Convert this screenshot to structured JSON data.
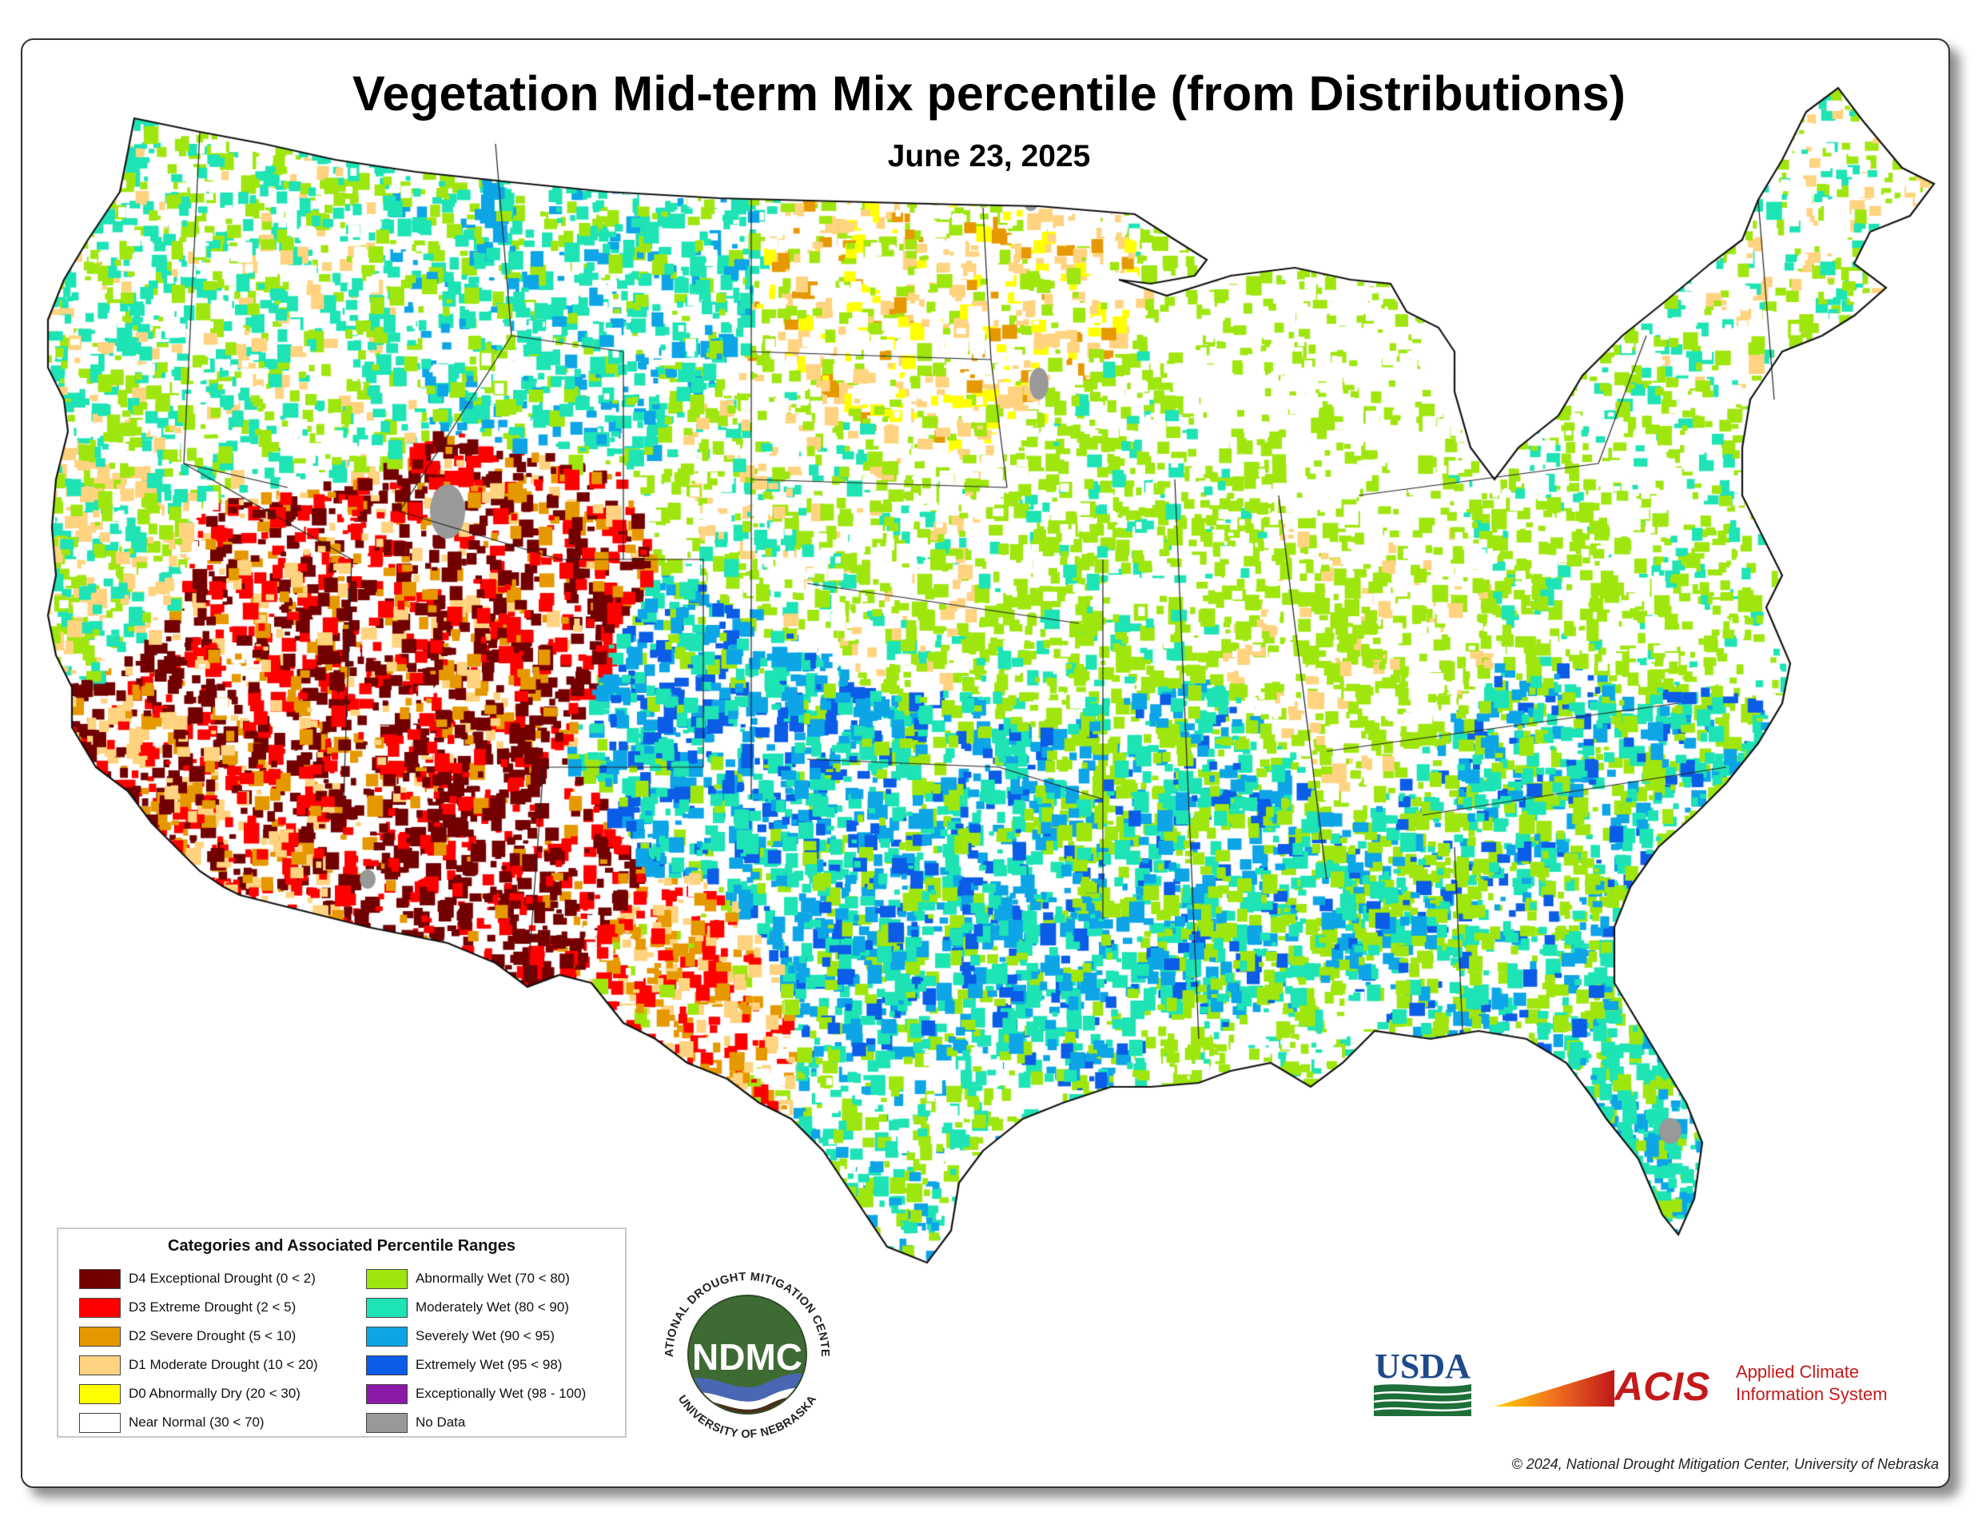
{
  "title": "Vegetation Mid-term Mix percentile (from Distributions)",
  "subtitle": "June 23, 2025",
  "legend": {
    "title": "Categories and Associated Percentile Ranges",
    "left": [
      {
        "label": "D4 Exceptional Drought (0 < 2)",
        "color": "#730000"
      },
      {
        "label": "D3 Extreme Drought (2 < 5)",
        "color": "#ff0000"
      },
      {
        "label": "D2 Severe Drought (5 < 10)",
        "color": "#e69800"
      },
      {
        "label": "D1 Moderate Drought (10 < 20)",
        "color": "#ffd37f"
      },
      {
        "label": "D0 Abnormally Dry (20 < 30)",
        "color": "#ffff00"
      },
      {
        "label": "Near Normal (30 < 70)",
        "color": "#ffffff"
      }
    ],
    "right": [
      {
        "label": "Abnormally Wet (70 < 80)",
        "color": "#9fe60f"
      },
      {
        "label": "Moderately Wet (80 < 90)",
        "color": "#1ee3b5"
      },
      {
        "label": "Severely Wet (90 < 95)",
        "color": "#0da5e6"
      },
      {
        "label": "Extremely Wet (95 < 98)",
        "color": "#0b5ce6"
      },
      {
        "label": "Exceptionally Wet (98 - 100)",
        "color": "#8b1aa8"
      },
      {
        "label": "No Data",
        "color": "#999999"
      }
    ]
  },
  "logos": {
    "ndmc": {
      "abbr": "NDMC",
      "ring_top": "NATIONAL DROUGHT MITIGATION CENTER",
      "ring_bottom": "UNIVERSITY OF NEBRASKA"
    },
    "usda": {
      "text": "USDA"
    },
    "acis": {
      "abbr": "ACIS",
      "line1": "Applied Climate",
      "line2": "Information System"
    }
  },
  "copyright": "© 2024, National Drought Mitigation Center, University of Nebraska"
}
